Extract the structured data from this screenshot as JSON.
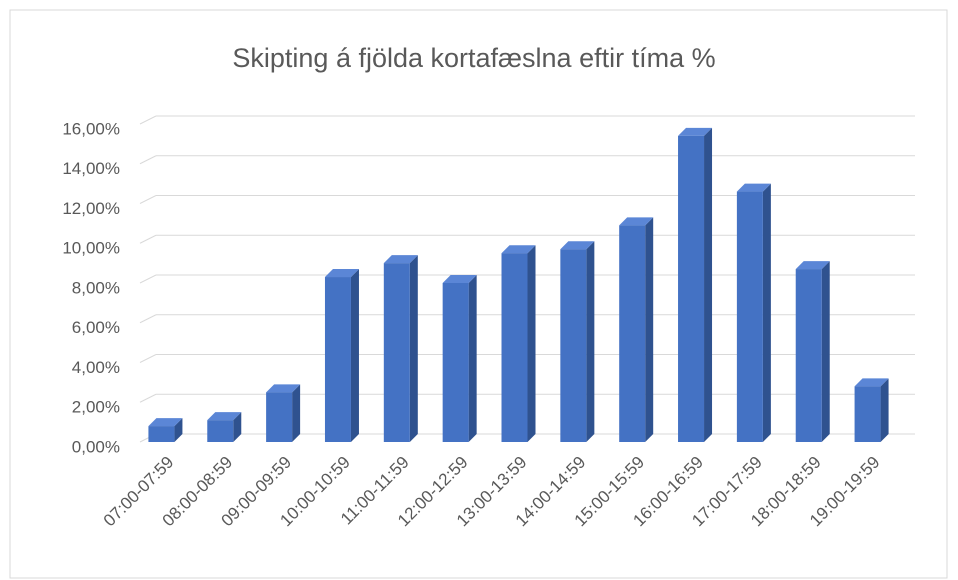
{
  "chart_data": {
    "type": "bar",
    "title": "Skipting á fjölda kortafæslna eftir tíma %",
    "categories": [
      "07:00-07:59",
      "08:00-08:59",
      "09:00-09:59",
      "10:00-10:59",
      "11:00-11:59",
      "12:00-12:59",
      "13:00-13:59",
      "14:00-14:59",
      "15:00-15:59",
      "16:00-16:59",
      "17:00-17:59",
      "18:00-18:59",
      "19:00-19:59"
    ],
    "values": [
      0.8,
      1.1,
      2.5,
      8.3,
      9.0,
      8.0,
      9.5,
      9.7,
      10.9,
      15.4,
      12.6,
      8.7,
      2.8
    ],
    "color": "#4472c4",
    "ylim": [
      0,
      16
    ],
    "yticks": [
      {
        "value": 0,
        "label": "0,00%"
      },
      {
        "value": 2,
        "label": "2,00%"
      },
      {
        "value": 4,
        "label": "4,00%"
      },
      {
        "value": 6,
        "label": "6,00%"
      },
      {
        "value": 8,
        "label": "8,00%"
      },
      {
        "value": 10,
        "label": "10,00%"
      },
      {
        "value": 12,
        "label": "12,00%"
      },
      {
        "value": 14,
        "label": "14,00%"
      },
      {
        "value": 16,
        "label": "16,00%"
      }
    ],
    "grid": true
  }
}
